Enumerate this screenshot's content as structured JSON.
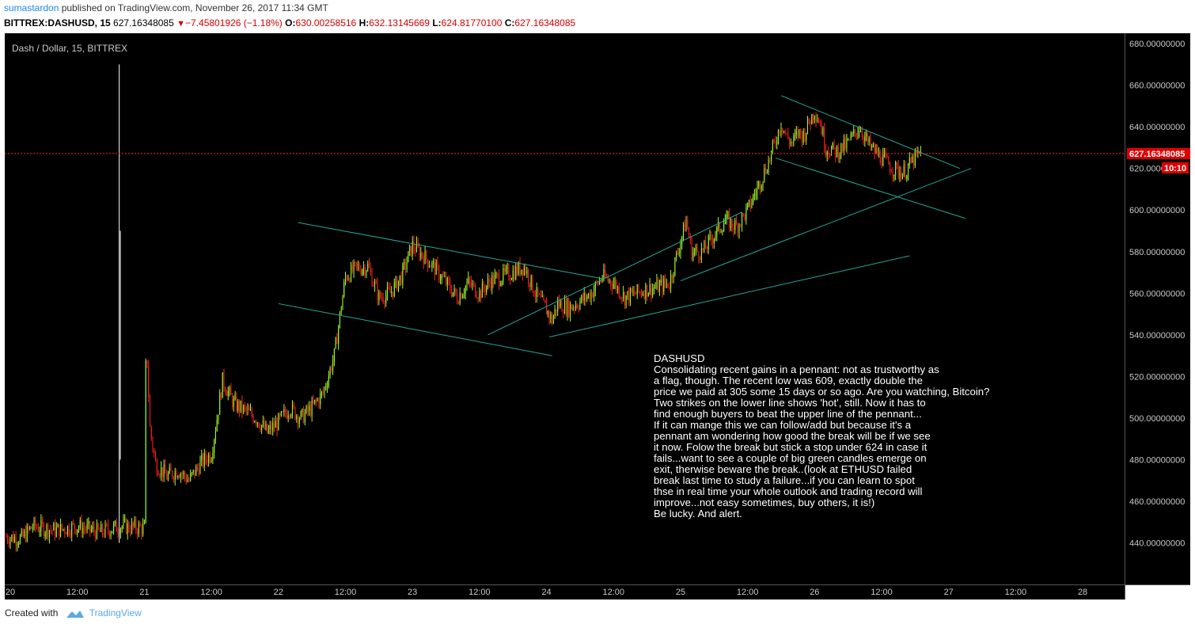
{
  "header": {
    "author": "sumastardon",
    "published_text": " published on TradingView.com, November 26, 2017 11:34 GMT",
    "symbol": "BITTREX:DASHUSD, 15",
    "last": "627.16348085",
    "change": "−7.45801926 (−1.18%)",
    "open_label": "O:",
    "open": "630.00258516",
    "high_label": "H:",
    "high": "632.13145669",
    "low_label": "L:",
    "low": "624.81770100",
    "close_label": "C:",
    "close": "627.16348085"
  },
  "footer": {
    "created_with": "Created with",
    "brand": "TradingView"
  },
  "colors": {
    "background": "#000000",
    "up": "#a4ff26",
    "down": "#ff1f1f",
    "trendline": "#26a69a",
    "price_line": "#ff2b2b",
    "axis_text": "#c8c8c8"
  },
  "chart_data": {
    "type": "candlestick",
    "title": "Dash / Dollar, 15, BITTREX",
    "ylim": [
      420,
      685
    ],
    "y_ticks": [
      "680.00000000",
      "660.00000000",
      "640.00000000",
      "620.00000000",
      "600.00000000",
      "580.00000000",
      "560.00000000",
      "540.00000000",
      "520.00000000",
      "500.00000000",
      "480.00000000",
      "460.00000000",
      "440.00000000"
    ],
    "x_labels": [
      "20",
      "12:00",
      "21",
      "12:00",
      "22",
      "12:00",
      "23",
      "12:00",
      "24",
      "12:00",
      "25",
      "12:00",
      "26",
      "12:00",
      "27",
      "12:00",
      "28"
    ],
    "x_label_hours": [
      0,
      12,
      24,
      36,
      48,
      60,
      72,
      84,
      96,
      108,
      120,
      132,
      144,
      156,
      168,
      180,
      192
    ],
    "x_range_hours": [
      -1.0,
      199.5
    ],
    "last_price": "627.16348085",
    "last_price_value": 627.16,
    "countdown": "10:10",
    "price_path_hours": [
      -1,
      2,
      4,
      8,
      12,
      16,
      19.5,
      24,
      24.3,
      25,
      26,
      28,
      30,
      32,
      34,
      36,
      37,
      38,
      40,
      44,
      46,
      48,
      50,
      52,
      54,
      56,
      58,
      60,
      62,
      64,
      66,
      68,
      70,
      72,
      74,
      76,
      78,
      80,
      82,
      84,
      86,
      88,
      90,
      92,
      94,
      96,
      97,
      98,
      100,
      102,
      104,
      106,
      108,
      110,
      112,
      114,
      116,
      118,
      120,
      121,
      122,
      124,
      126,
      128,
      130,
      132,
      134,
      136,
      138,
      139,
      140,
      141,
      142,
      144,
      145,
      146,
      148,
      150,
      152,
      154,
      156,
      158,
      160,
      162,
      163
    ],
    "price_path_values": [
      443,
      442,
      448,
      446,
      448,
      445,
      448,
      447,
      540,
      495,
      478,
      472,
      475,
      470,
      478,
      483,
      500,
      518,
      507,
      500,
      493,
      498,
      505,
      500,
      505,
      512,
      530,
      568,
      572,
      573,
      558,
      560,
      568,
      583,
      578,
      572,
      565,
      558,
      565,
      560,
      566,
      568,
      570,
      573,
      560,
      552,
      547,
      555,
      553,
      556,
      560,
      568,
      565,
      558,
      560,
      562,
      563,
      565,
      585,
      595,
      580,
      580,
      588,
      595,
      592,
      600,
      612,
      625,
      642,
      635,
      632,
      637,
      636,
      648,
      642,
      630,
      628,
      632,
      640,
      630,
      625,
      620,
      618,
      625,
      627
    ],
    "spikes": [
      {
        "hour": 19.5,
        "high": 670,
        "low": 440
      },
      {
        "hour": 19.7,
        "high": 590,
        "low": 480
      }
    ],
    "trendlines": [
      {
        "points": [
          [
            51.5,
            594
          ],
          [
            106,
            567
          ]
        ]
      },
      {
        "points": [
          [
            48,
            555
          ],
          [
            97,
            530
          ]
        ]
      },
      {
        "points": [
          [
            85.5,
            540
          ],
          [
            131,
            599
          ]
        ]
      },
      {
        "points": [
          [
            96.5,
            539
          ],
          [
            161,
            578
          ]
        ]
      },
      {
        "points": [
          [
            120,
            566
          ],
          [
            172,
            620
          ]
        ]
      },
      {
        "points": [
          [
            138,
            655
          ],
          [
            170,
            620
          ]
        ]
      },
      {
        "points": [
          [
            137,
            625
          ],
          [
            171,
            596
          ]
        ]
      }
    ],
    "annotation": {
      "title": "DASHUSD",
      "lines": [
        "Consolidating recent gains in a pennant: not as trustworthy as",
        "a flag, though. The recent low was 609, exactly double the",
        "price we paid at 305 some 15 days or so ago. Are you watching, Bitcoin?",
        "Two strikes on the lower line shows 'hot', still. Now it has to",
        "find enough buyers to beat the upper line of the pennant...",
        "If it can mange this we can follow/add but because it's a",
        "pennant am wondering  how good the break will be if we see",
        "it now. Folow the break but stick a stop under 624 in case it",
        "fails...want to see a couple of big green candles emerge on",
        "exit, therwise beware the break..(look at ETHUSD failed",
        "break last time to study a failure...if you can learn to spot",
        "thse in real time your whole outlook and trading record will",
        "improve...not easy sometimes, buy others, it is!)",
        "Be lucky. And alert."
      ]
    }
  }
}
